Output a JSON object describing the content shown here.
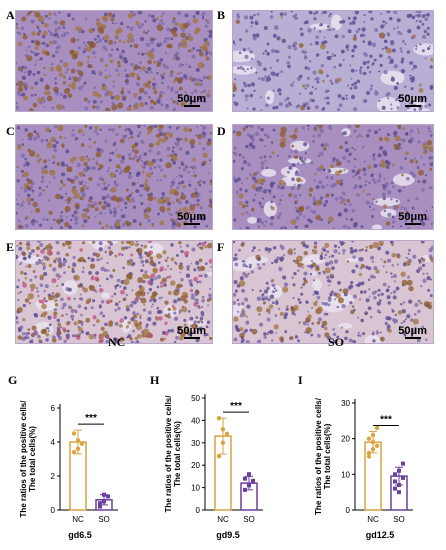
{
  "micrographs": {
    "panels": [
      {
        "letter": "A",
        "scale": "50μm",
        "stain": "dense"
      },
      {
        "letter": "B",
        "scale": "50μm",
        "stain": "light"
      },
      {
        "letter": "C",
        "scale": "50μm",
        "stain": "dense"
      },
      {
        "letter": "D",
        "scale": "50μm",
        "stain": "spotted"
      },
      {
        "letter": "E",
        "scale": "50μm",
        "stain": "dense-stroma"
      },
      {
        "letter": "F",
        "scale": "50μm",
        "stain": "spotted-stroma"
      }
    ],
    "group_labels": [
      "NC",
      "SO"
    ]
  },
  "colors": {
    "nc": "#d9a441",
    "so": "#6b3fa0",
    "tissue_purple": "#9c86bd",
    "brown_stain": "#8a5a2a"
  },
  "chart_data": [
    {
      "panel": "G",
      "type": "bar",
      "title": "gd6.5",
      "ylabel": "The ratios of the positive cells/ The total cells(%)",
      "categories": [
        "NC",
        "SO"
      ],
      "values": [
        4.0,
        0.6
      ],
      "errors": [
        0.7,
        0.3
      ],
      "ylim": [
        0,
        6
      ],
      "yticks": [
        0,
        2,
        4,
        6
      ],
      "significance": "***",
      "points": [
        [
          3.4,
          4.1,
          3.9,
          4.5,
          3.6
        ],
        [
          0.2,
          0.5,
          0.8,
          0.4,
          0.9
        ]
      ]
    },
    {
      "panel": "H",
      "type": "bar",
      "title": "gd9.5",
      "ylabel": "The ratios of the positive cells/ The total cells(%)",
      "categories": [
        "NC",
        "SO"
      ],
      "values": [
        33,
        12
      ],
      "errors": [
        8,
        3
      ],
      "ylim": [
        0,
        50
      ],
      "yticks": [
        0,
        10,
        20,
        30,
        40,
        50
      ],
      "significance": "***",
      "points": [
        [
          24,
          30,
          34,
          41,
          36
        ],
        [
          9,
          11,
          13,
          14,
          16
        ]
      ]
    },
    {
      "panel": "I",
      "type": "bar",
      "title": "gd12.5",
      "ylabel": "The ratios of the positive cells/ The total cells(%)",
      "categories": [
        "NC",
        "SO"
      ],
      "values": [
        19,
        9.5
      ],
      "errors": [
        3,
        2.5
      ],
      "ylim": [
        0,
        30
      ],
      "yticks": [
        0,
        10,
        20,
        30
      ],
      "significance": "***",
      "points": [
        [
          15,
          17,
          18,
          20,
          21,
          23,
          16,
          19
        ],
        [
          6,
          7,
          9,
          10,
          11,
          13,
          8,
          5
        ]
      ]
    }
  ]
}
